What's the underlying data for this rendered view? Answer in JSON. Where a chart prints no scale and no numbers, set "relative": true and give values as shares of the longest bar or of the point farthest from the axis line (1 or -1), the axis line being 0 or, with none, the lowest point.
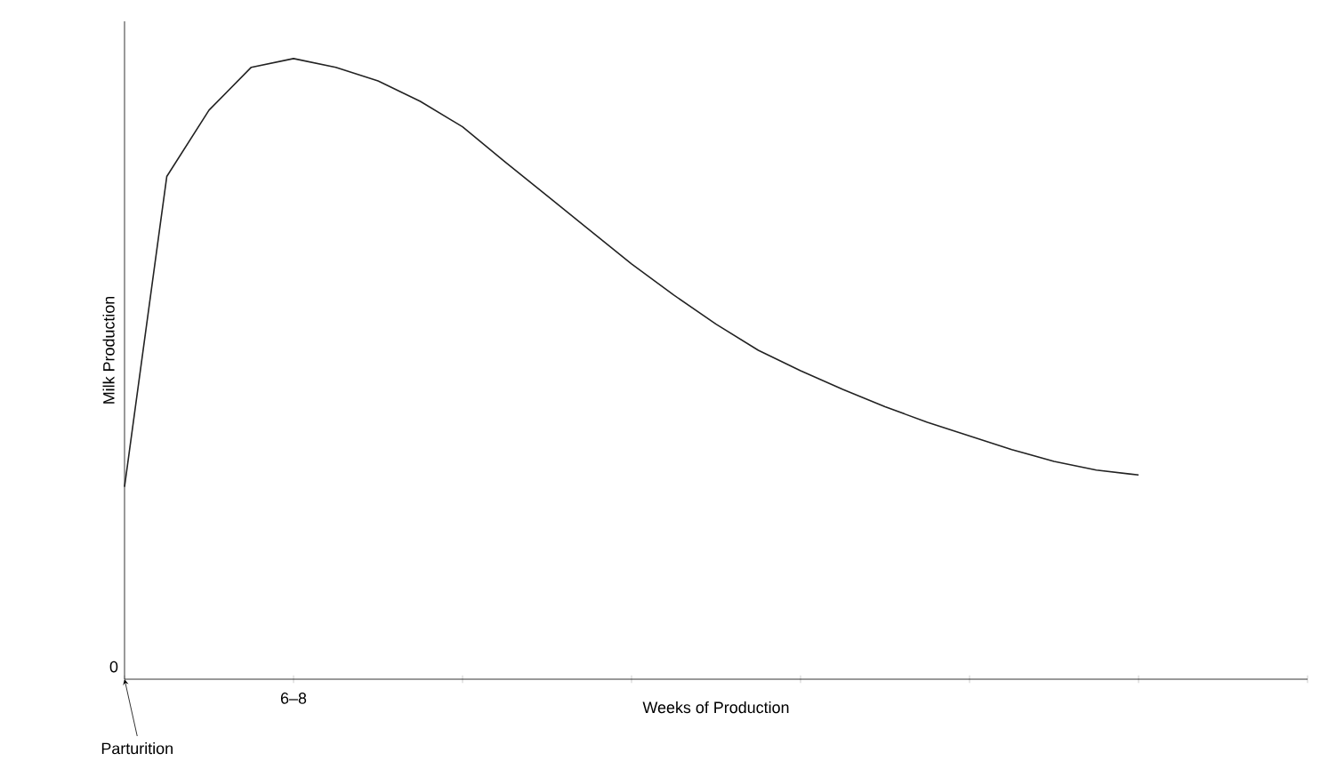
{
  "chart_data": {
    "type": "line",
    "relative": true,
    "xlabel": "Weeks of Production",
    "ylabel": "Milk Production",
    "categories": [
      null,
      null,
      null,
      null,
      null,
      null,
      null,
      null,
      null,
      null,
      null,
      null,
      null,
      null,
      null,
      null,
      null,
      null,
      null,
      null,
      null,
      null,
      null,
      null,
      null,
      null,
      null,
      null,
      null
    ],
    "series": [
      {
        "color": "#222222",
        "values": [
          0.31,
          0.81,
          0.917,
          0.986,
          1,
          0.986,
          0.964,
          0.931,
          0.89,
          0.834,
          0.779,
          0.724,
          0.669,
          0.619,
          0.572,
          0.53,
          0.497,
          0.467,
          0.439,
          0.414,
          0.392,
          0.37,
          0.351,
          0.337,
          0.329,
          null,
          null,
          null,
          null
        ]
      }
    ],
    "annotations": [
      "0",
      "Parturition",
      "6–8"
    ],
    "grid": false,
    "marker": "none",
    "line_style": "solid"
  }
}
